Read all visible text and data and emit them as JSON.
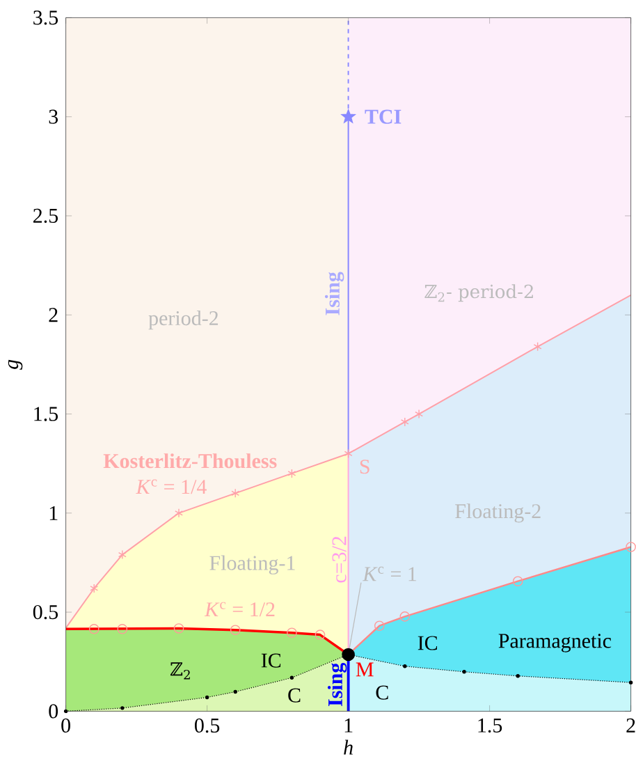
{
  "chart_data": {
    "type": "line",
    "xlabel": "h",
    "ylabel": "g",
    "xlim": [
      0,
      2
    ],
    "ylim": [
      0,
      3.5
    ],
    "xticks": [
      0,
      0.5,
      1,
      1.5,
      2
    ],
    "yticks": [
      0,
      0.5,
      1,
      1.5,
      2,
      2.5,
      3,
      3.5
    ],
    "series": [
      {
        "type": "area",
        "color": "#fcf4ec",
        "x": [
          0,
          1
        ],
        "values": [
          3.5,
          3.5
        ]
      },
      {
        "type": "area",
        "color": "#fdeefa",
        "x": [
          1,
          2
        ],
        "values": [
          3.5,
          3.5
        ]
      },
      {
        "type": "area",
        "color": "#ffffcc",
        "x": [
          0,
          0.1,
          0.2,
          0.4,
          0.6,
          0.8,
          1
        ],
        "values": [
          0.42,
          0.62,
          0.79,
          1.0,
          1.1,
          1.2,
          1.3
        ]
      },
      {
        "type": "area",
        "color": "#dcedfa",
        "x": [
          1,
          1.2,
          1.25,
          1.67,
          2
        ],
        "values": [
          1.3,
          1.46,
          1.5,
          1.84,
          2.1
        ]
      },
      {
        "type": "area",
        "color": "#a6e87a",
        "x": [
          0,
          0.4,
          0.6,
          0.8,
          0.9,
          1
        ],
        "values": [
          0.415,
          0.418,
          0.41,
          0.396,
          0.386,
          0.286
        ]
      },
      {
        "type": "area",
        "color": "#5fe6f5",
        "x": [
          1,
          1.11,
          1.2,
          1.6,
          2
        ],
        "values": [
          0.286,
          0.431,
          0.478,
          0.656,
          0.829
        ]
      },
      {
        "type": "area",
        "color": "#dcf7b4",
        "x": [
          0,
          0.2,
          0.5,
          0.6,
          0.8,
          1
        ],
        "values": [
          0,
          0.016,
          0.07,
          0.098,
          0.169,
          0.286
        ]
      },
      {
        "type": "area",
        "color": "#c8f7fa",
        "x": [
          1,
          1.2,
          1.41,
          1.6,
          2
        ],
        "values": [
          0.286,
          0.227,
          0.199,
          0.178,
          0.145
        ]
      },
      {
        "type": "line",
        "color": "#ffa0a8",
        "x": [
          0,
          0.1,
          0.2,
          0.4,
          0.6,
          0.8,
          1,
          1.2,
          1.25,
          1.67,
          2
        ],
        "values": [
          0.42,
          0.62,
          0.79,
          1.0,
          1.1,
          1.2,
          1.3,
          1.46,
          1.5,
          1.84,
          2.1
        ]
      },
      {
        "type": "scatter",
        "color": "#ffa0a8",
        "marker": "cross",
        "x": [
          0.1,
          0.2,
          0.4,
          0.6,
          0.8,
          1,
          1.2,
          1.25,
          1.67
        ],
        "values": [
          0.62,
          0.79,
          1.0,
          1.1,
          1.2,
          1.3,
          1.46,
          1.5,
          1.84
        ]
      },
      {
        "type": "line",
        "color": "#ff0000",
        "x": [
          0,
          0.4,
          0.6,
          0.8,
          0.9,
          1
        ],
        "values": [
          0.415,
          0.418,
          0.41,
          0.396,
          0.386,
          0.286
        ]
      },
      {
        "type": "scatter",
        "color": "#ff9999",
        "marker": "circle",
        "x": [
          0.1,
          0.2,
          0.4,
          0.6,
          0.8,
          0.9
        ],
        "values": [
          0.415,
          0.415,
          0.418,
          0.41,
          0.396,
          0.386
        ]
      },
      {
        "type": "line",
        "color": "#ff8888",
        "x": [
          1,
          1.11,
          1.2,
          1.6,
          2
        ],
        "values": [
          0.286,
          0.431,
          0.478,
          0.656,
          0.829
        ]
      },
      {
        "type": "scatter",
        "color": "#ff9999",
        "marker": "circle",
        "x": [
          1.11,
          1.2,
          1.6,
          2
        ],
        "values": [
          0.431,
          0.478,
          0.656,
          0.829
        ]
      },
      {
        "type": "line",
        "color": "#000000",
        "line_style": "dotted",
        "marker": "circle",
        "x": [
          0,
          0.2,
          0.5,
          0.6,
          0.8,
          1,
          1.2,
          1.41,
          1.6,
          2
        ],
        "values": [
          0,
          0.016,
          0.07,
          0.098,
          0.169,
          0.286,
          0.227,
          0.199,
          0.178,
          0.145
        ]
      },
      {
        "type": "line",
        "color": "#0000ff",
        "x": [
          1,
          1
        ],
        "values": [
          0,
          0.286
        ]
      },
      {
        "type": "line",
        "color": "#ffaadd",
        "x": [
          1,
          1
        ],
        "values": [
          0.286,
          1.3
        ]
      },
      {
        "type": "line",
        "color": "#8888ff",
        "x": [
          1,
          1
        ],
        "values": [
          1.3,
          3.0
        ]
      },
      {
        "type": "line",
        "color": "#8888ff",
        "line_style": "dashed",
        "x": [
          1,
          1
        ],
        "values": [
          3.0,
          3.5
        ]
      },
      {
        "type": "scatter",
        "color": "#000000",
        "marker": "circle",
        "x": [
          1
        ],
        "values": [
          0.286
        ]
      },
      {
        "type": "scatter",
        "color": "#8888ff",
        "marker": "star",
        "x": [
          1
        ],
        "values": [
          3.0
        ]
      }
    ],
    "annotations": [
      "period-2",
      "ℤ$_{2}$- period-2",
      {
        "text": "TCI",
        "x": 1,
        "y": 3.0
      },
      {
        "text": "Ising",
        "x": 1,
        "y": 2.107
      },
      {
        "text": "Kosterlitz-Thouless",
        "x": 0.44,
        "y": 1.02
      },
      {
        "text": "*K*$^{c}$ = 1/4",
        "x": 0.374,
        "y": 0.973
      },
      {
        "text": "S",
        "x": 1,
        "y": 1.3
      },
      "Floating-1",
      {
        "text": "c=3/2",
        "x": 1,
        "y": 0.766
      },
      "Floating-2",
      {
        "text": "*K*$^{c}$ = 1",
        "x": 1,
        "y": 0.286
      },
      {
        "text": "*K*$^{c}$ = 1/2",
        "x": 0.617,
        "y": 0.409
      },
      "ℤ$_{2}$",
      "IC",
      "C",
      {
        "text": "Ising",
        "x": 1,
        "y": 0.134
      },
      {
        "text": "M",
        "x": 1,
        "y": 0.286
      },
      "IC",
      "Paramagnetic",
      "C"
    ]
  }
}
